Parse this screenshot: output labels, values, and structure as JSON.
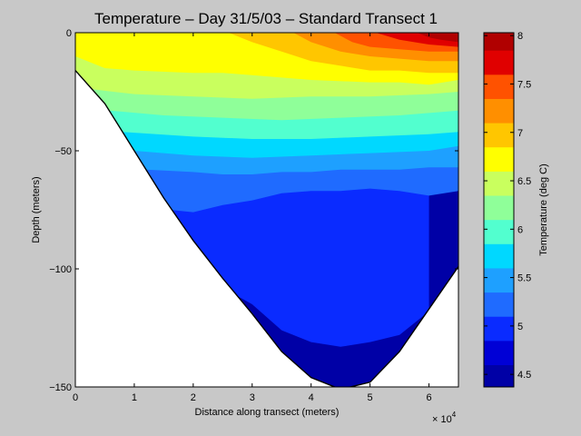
{
  "figure": {
    "background": "#c8c8c8"
  },
  "chart_data": {
    "type": "heatmap",
    "subtype": "filled-contour",
    "title": "Temperature – Day 31/5/03 – Standard Transect 1",
    "xlabel": "Distance along transect (meters)",
    "ylabel": "Depth (meters)",
    "x_multiplier_label": "× 10",
    "x_multiplier_exponent": "4",
    "xlim": [
      0,
      65000
    ],
    "ylim": [
      -150,
      0
    ],
    "x_ticks": [
      0,
      10000,
      20000,
      30000,
      40000,
      50000,
      60000
    ],
    "x_tick_labels": [
      "0",
      "1",
      "2",
      "3",
      "4",
      "5",
      "6"
    ],
    "y_ticks": [
      -150,
      -100,
      -50,
      0
    ],
    "y_tick_labels": [
      "−150",
      "−100",
      "−50",
      "0"
    ],
    "colorbar": {
      "label": "Temperature (deg C)",
      "range": [
        4.37,
        8.03
      ],
      "ticks": [
        4.5,
        5,
        5.5,
        6,
        6.5,
        7,
        7.5,
        8
      ],
      "tick_labels": [
        "4.5",
        "5",
        "5.5",
        "6",
        "6.5",
        "7",
        "7.5",
        "8"
      ],
      "levels": [
        {
          "from": 4.37,
          "to": 4.6,
          "color": "#0000a6"
        },
        {
          "from": 4.6,
          "to": 4.85,
          "color": "#0000d6"
        },
        {
          "from": 4.85,
          "to": 5.1,
          "color": "#0a2bff"
        },
        {
          "from": 5.1,
          "to": 5.35,
          "color": "#1f6bff"
        },
        {
          "from": 5.35,
          "to": 5.6,
          "color": "#1ea0ff"
        },
        {
          "from": 5.6,
          "to": 5.85,
          "color": "#00d8ff"
        },
        {
          "from": 5.85,
          "to": 6.1,
          "color": "#52ffcf"
        },
        {
          "from": 6.1,
          "to": 6.35,
          "color": "#8fff99"
        },
        {
          "from": 6.35,
          "to": 6.6,
          "color": "#c9ff5e"
        },
        {
          "from": 6.6,
          "to": 6.85,
          "color": "#ffff00"
        },
        {
          "from": 6.85,
          "to": 7.1,
          "color": "#ffc600"
        },
        {
          "from": 7.1,
          "to": 7.35,
          "color": "#ff8f00"
        },
        {
          "from": 7.35,
          "to": 7.6,
          "color": "#ff5200"
        },
        {
          "from": 7.6,
          "to": 7.85,
          "color": "#e00000"
        },
        {
          "from": 7.85,
          "to": 8.03,
          "color": "#b00000"
        }
      ]
    },
    "bottom_profile": {
      "x": [
        0,
        5000,
        10000,
        15000,
        20000,
        25000,
        30000,
        35000,
        40000,
        45000,
        50000,
        55000,
        60000,
        65000
      ],
      "depth": [
        -16,
        -30,
        -50,
        -70,
        -88,
        -104,
        -119,
        -135,
        -146,
        -151,
        -148,
        -135,
        -117,
        -99
      ]
    },
    "isotherms": [
      {
        "temp": 4.85,
        "x": [
          25000,
          30000,
          35000,
          40000,
          45000,
          50000,
          55000,
          60000
        ],
        "depth": [
          -108,
          -115,
          -126,
          -131,
          -133,
          -131,
          -128,
          -118
        ]
      },
      {
        "temp": 5.1,
        "x": [
          16000,
          20000,
          25000,
          30000,
          35000,
          40000,
          45000,
          50000,
          55000,
          60000,
          65000
        ],
        "depth": [
          -75,
          -76,
          -73,
          -71,
          -68,
          -67,
          -67,
          -66,
          -67,
          -69,
          -67
        ]
      },
      {
        "temp": 5.35,
        "x": [
          12000,
          20000,
          25000,
          30000,
          35000,
          40000,
          45000,
          50000,
          55000,
          60000,
          65000
        ],
        "depth": [
          -58,
          -59,
          -60,
          -60,
          -59,
          -59,
          -58,
          -58,
          -58,
          -57,
          -57
        ]
      },
      {
        "temp": 5.6,
        "x": [
          10000,
          20000,
          30000,
          40000,
          50000,
          60000,
          65000
        ],
        "depth": [
          -50,
          -52,
          -53,
          -52,
          -51,
          -50,
          -48
        ]
      },
      {
        "temp": 5.85,
        "x": [
          8000,
          20000,
          30000,
          40000,
          50000,
          60000,
          65000
        ],
        "depth": [
          -42,
          -44,
          -45,
          -45,
          -44,
          -43,
          -42
        ]
      },
      {
        "temp": 6.1,
        "x": [
          6000,
          15000,
          25000,
          35000,
          45000,
          55000,
          65000
        ],
        "depth": [
          -33,
          -35,
          -36,
          -37,
          -36,
          -35,
          -33
        ]
      },
      {
        "temp": 6.35,
        "x": [
          3000,
          10000,
          20000,
          30000,
          40000,
          50000,
          60000,
          65000
        ],
        "depth": [
          -24,
          -26,
          -27,
          -28,
          -27,
          -27,
          -26,
          -25
        ]
      },
      {
        "temp": 6.6,
        "x": [
          0,
          5000,
          10000,
          20000,
          25000,
          30000,
          40000,
          50000,
          55000,
          60000,
          65000
        ],
        "depth": [
          -10,
          -15,
          -16,
          -17,
          -17,
          -18,
          -20,
          -21,
          -21,
          -22,
          -20
        ]
      },
      {
        "temp": 6.85,
        "x": [
          26000,
          30000,
          35000,
          40000,
          45000,
          50000,
          55000,
          60000,
          65000
        ],
        "depth": [
          0,
          -4,
          -8,
          -12,
          -14,
          -16,
          -16,
          -17,
          -17
        ]
      },
      {
        "temp": 7.1,
        "x": [
          37000,
          40000,
          45000,
          50000,
          55000,
          60000,
          65000
        ],
        "depth": [
          0,
          -4,
          -8,
          -10,
          -11,
          -12,
          -12
        ]
      },
      {
        "temp": 7.35,
        "x": [
          44000,
          47000,
          50000,
          55000,
          60000,
          65000
        ],
        "depth": [
          0,
          -4,
          -6,
          -7,
          -8,
          -8
        ]
      },
      {
        "temp": 7.6,
        "x": [
          51000,
          55000,
          60000,
          65000
        ],
        "depth": [
          0,
          -3,
          -5,
          -6
        ]
      },
      {
        "temp": 7.85,
        "x": [
          58000,
          60000,
          62000,
          65000
        ],
        "depth": [
          0,
          -2,
          -3,
          -4
        ]
      }
    ]
  }
}
